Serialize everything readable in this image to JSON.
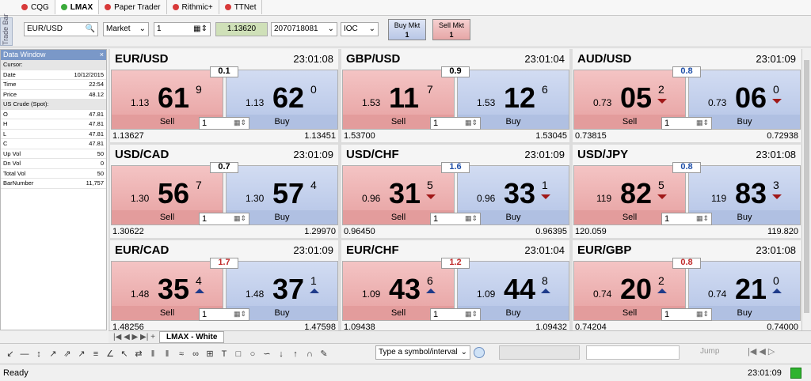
{
  "tabs": [
    {
      "label": "CQG",
      "dot_color": "#d83a3a"
    },
    {
      "label": "LMAX",
      "dot_color": "#3cab3c"
    },
    {
      "label": "Paper Trader",
      "dot_color": "#d83a3a"
    },
    {
      "label": "Rithmic+",
      "dot_color": "#d83a3a"
    },
    {
      "label": "TTNet",
      "dot_color": "#d83a3a"
    }
  ],
  "trade_bar": {
    "label": "Trade Bar",
    "symbol": "EUR/USD",
    "order_type": "Market",
    "quantity": "1",
    "price": "1.13620",
    "account": "2070718081",
    "tif": "IOC",
    "buy_mkt": {
      "label": "Buy Mkt",
      "qty": "1"
    },
    "sell_mkt": {
      "label": "Sell Mkt",
      "qty": "1"
    }
  },
  "data_window": {
    "title": "Data Window",
    "rows": [
      {
        "label": "Cursor:",
        "header": true
      },
      {
        "label": "Date",
        "value": "10/12/2015"
      },
      {
        "label": "Time",
        "value": "22:54"
      },
      {
        "label": "Price",
        "value": "48.12"
      },
      {
        "label": "US Crude (Spot):",
        "header": true
      },
      {
        "label": "O",
        "value": "47.81"
      },
      {
        "label": "H",
        "value": "47.81"
      },
      {
        "label": "L",
        "value": "47.81"
      },
      {
        "label": "C",
        "value": "47.81"
      },
      {
        "label": "Up Vol",
        "value": "50"
      },
      {
        "label": "Dn Vol",
        "value": "0"
      },
      {
        "label": "Total Vol",
        "value": "50"
      },
      {
        "label": "BarNumber",
        "value": "11,757"
      }
    ]
  },
  "tiles": [
    {
      "pair": "EUR/USD",
      "time": "23:01:08",
      "spread": "0.1",
      "spread_color": "#000000",
      "sell": {
        "prefix": "1.13",
        "big": "61",
        "pip": "9",
        "label": "Sell"
      },
      "buy": {
        "prefix": "1.13",
        "big": "62",
        "pip": "0",
        "label": "Buy"
      },
      "qty": "1",
      "low": "1.13627",
      "high": "1.13451"
    },
    {
      "pair": "GBP/USD",
      "time": "23:01:04",
      "spread": "0.9",
      "spread_color": "#000000",
      "sell": {
        "prefix": "1.53",
        "big": "11",
        "pip": "7",
        "label": "Sell"
      },
      "buy": {
        "prefix": "1.53",
        "big": "12",
        "pip": "6",
        "label": "Buy"
      },
      "qty": "1",
      "low": "1.53700",
      "high": "1.53045"
    },
    {
      "pair": "AUD/USD",
      "time": "23:01:09",
      "spread": "0.8",
      "spread_color": "#1f4fa8",
      "sell": {
        "prefix": "0.73",
        "big": "05",
        "pip": "2",
        "label": "Sell",
        "arrow": "down"
      },
      "buy": {
        "prefix": "0.73",
        "big": "06",
        "pip": "0",
        "label": "Buy",
        "arrow": "down"
      },
      "qty": "1",
      "low": "0.73815",
      "high": "0.72938"
    },
    {
      "pair": "USD/CAD",
      "time": "23:01:09",
      "spread": "0.7",
      "spread_color": "#000000",
      "sell": {
        "prefix": "1.30",
        "big": "56",
        "pip": "7",
        "label": "Sell"
      },
      "buy": {
        "prefix": "1.30",
        "big": "57",
        "pip": "4",
        "label": "Buy"
      },
      "qty": "1",
      "low": "1.30622",
      "high": "1.29970"
    },
    {
      "pair": "USD/CHF",
      "time": "23:01:09",
      "spread": "1.6",
      "spread_color": "#1f4fa8",
      "sell": {
        "prefix": "0.96",
        "big": "31",
        "pip": "5",
        "label": "Sell",
        "arrow": "down"
      },
      "buy": {
        "prefix": "0.96",
        "big": "33",
        "pip": "1",
        "label": "Buy",
        "arrow": "down"
      },
      "qty": "1",
      "low": "0.96450",
      "high": "0.96395"
    },
    {
      "pair": "USD/JPY",
      "time": "23:01:08",
      "spread": "0.8",
      "spread_color": "#1f4fa8",
      "sell": {
        "prefix": "119",
        "big": "82",
        "pip": "5",
        "label": "Sell",
        "arrow": "down"
      },
      "buy": {
        "prefix": "119",
        "big": "83",
        "pip": "3",
        "label": "Buy",
        "arrow": "down"
      },
      "qty": "1",
      "low": "120.059",
      "high": "119.820"
    },
    {
      "pair": "EUR/CAD",
      "time": "23:01:09",
      "spread": "1.7",
      "spread_color": "#c02a2a",
      "sell": {
        "prefix": "1.48",
        "big": "35",
        "pip": "4",
        "label": "Sell",
        "arrow": "up"
      },
      "buy": {
        "prefix": "1.48",
        "big": "37",
        "pip": "1",
        "label": "Buy",
        "arrow": "up"
      },
      "qty": "1",
      "low": "1.48256",
      "high": "1.47598"
    },
    {
      "pair": "EUR/CHF",
      "time": "23:01:04",
      "spread": "1.2",
      "spread_color": "#c02a2a",
      "sell": {
        "prefix": "1.09",
        "big": "43",
        "pip": "6",
        "label": "Sell",
        "arrow": "up"
      },
      "buy": {
        "prefix": "1.09",
        "big": "44",
        "pip": "8",
        "label": "Buy",
        "arrow": "up"
      },
      "qty": "1",
      "low": "1.09438",
      "high": "1.09432"
    },
    {
      "pair": "EUR/GBP",
      "time": "23:01:08",
      "spread": "0.8",
      "spread_color": "#c02a2a",
      "sell": {
        "prefix": "0.74",
        "big": "20",
        "pip": "2",
        "label": "Sell",
        "arrow": "up"
      },
      "buy": {
        "prefix": "0.74",
        "big": "21",
        "pip": "0",
        "label": "Buy",
        "arrow": "up"
      },
      "qty": "1",
      "low": "0.74204",
      "high": "0.74000"
    }
  ],
  "sheet_tab": "LMAX - White",
  "toolbar": {
    "symbol_box": "Type a symbol/interval",
    "jump": "Jump"
  },
  "status": {
    "text": "Ready",
    "time": "23:01:09"
  }
}
